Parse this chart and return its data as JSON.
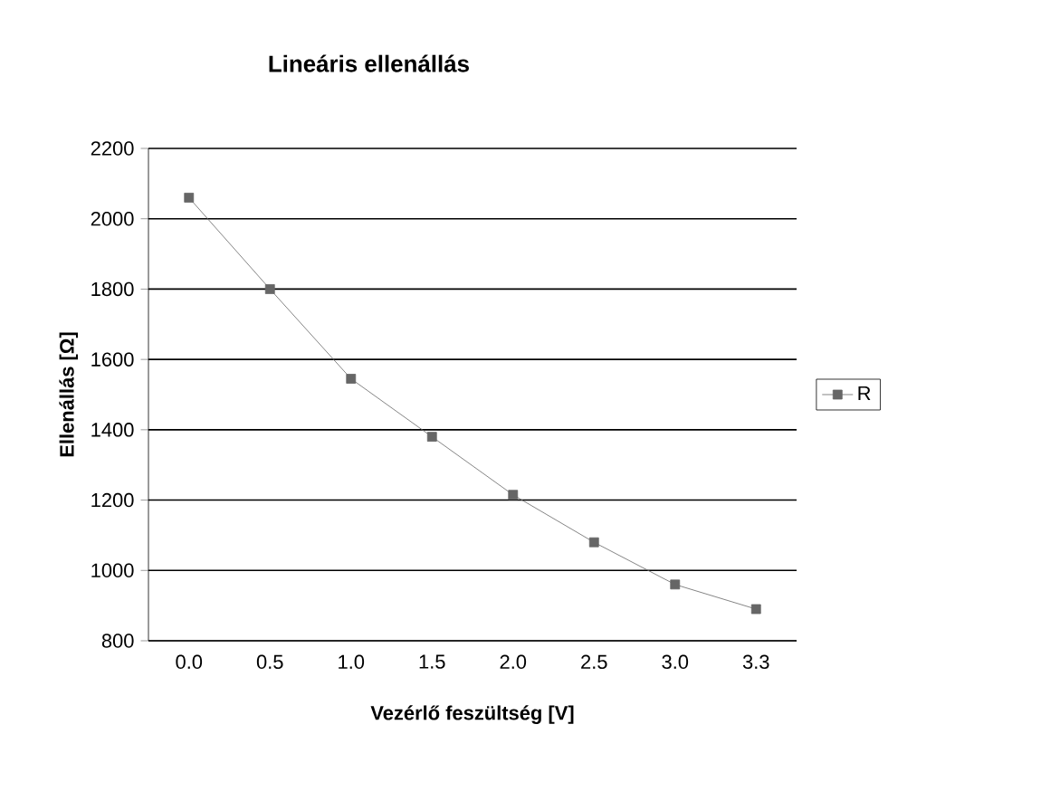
{
  "chart_data": {
    "type": "line",
    "title": "Lineáris ellenállás",
    "xlabel": "Vezérlő feszültség [V]",
    "ylabel": "Ellenállás [Ω]",
    "categories": [
      "0.0",
      "0.5",
      "1.0",
      "1.5",
      "2.0",
      "2.5",
      "3.0",
      "3.3"
    ],
    "series": [
      {
        "name": "R",
        "color": "#666666",
        "values": [
          2060,
          1800,
          1545,
          1380,
          1215,
          1080,
          960,
          890
        ]
      }
    ],
    "ylim": [
      800,
      2200
    ],
    "yticks": [
      800,
      1000,
      1200,
      1400,
      1600,
      1800,
      2000,
      2200
    ],
    "grid": "y",
    "legend": "right",
    "marker": "square",
    "line_style": "solid"
  }
}
